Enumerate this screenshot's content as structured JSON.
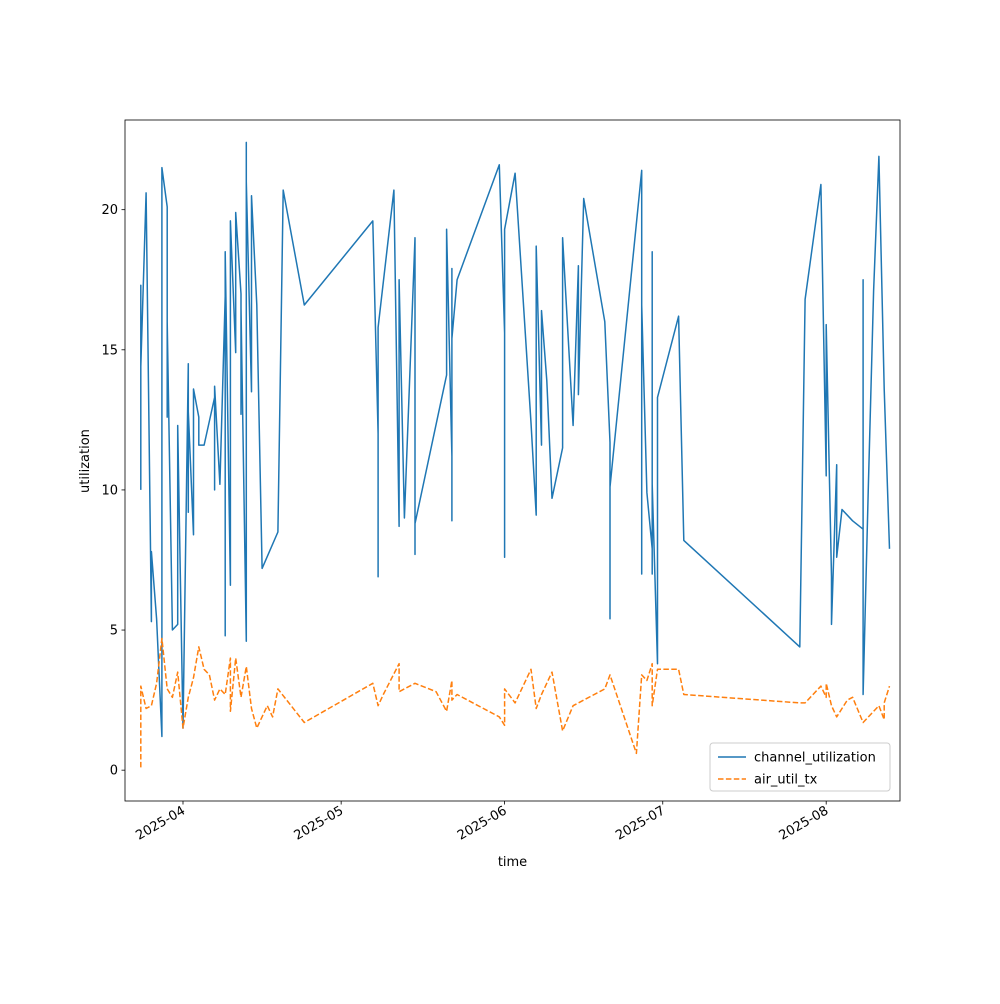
{
  "chart_data": {
    "type": "line",
    "title": "",
    "xlabel": "time",
    "ylabel": "utilization",
    "x_type": "date",
    "xlim": [
      "2025-03-21",
      "2025-08-15"
    ],
    "ylim": [
      -1.1,
      23.2
    ],
    "x_ticks": [
      "2025-04-01",
      "2025-05-01",
      "2025-06-01",
      "2025-07-01",
      "2025-08-01"
    ],
    "x_tick_labels": [
      "2025-04",
      "2025-05",
      "2025-06",
      "2025-07",
      "2025-08"
    ],
    "y_ticks": [
      0,
      5,
      10,
      15,
      20
    ],
    "y_tick_labels": [
      "0",
      "5",
      "10",
      "15",
      "20"
    ],
    "grid": false,
    "legend_position": "lower right",
    "series": [
      {
        "name": "channel_utilization",
        "color": "#1f77b4",
        "dash": "solid",
        "points": [
          [
            "2025-03-24",
            10.0
          ],
          [
            "2025-03-24",
            17.3
          ],
          [
            "2025-03-24",
            14.4
          ],
          [
            "2025-03-25",
            20.6
          ],
          [
            "2025-03-26",
            5.3
          ],
          [
            "2025-03-26",
            7.8
          ],
          [
            "2025-03-27",
            5.4
          ],
          [
            "2025-03-28",
            1.2
          ],
          [
            "2025-03-28",
            21.5
          ],
          [
            "2025-03-29",
            20.1
          ],
          [
            "2025-03-29",
            12.6
          ],
          [
            "2025-03-29",
            16.0
          ],
          [
            "2025-03-30",
            5.0
          ],
          [
            "2025-03-31",
            5.2
          ],
          [
            "2025-03-31",
            12.3
          ],
          [
            "2025-04-01",
            1.5
          ],
          [
            "2025-04-02",
            14.5
          ],
          [
            "2025-04-02",
            9.2
          ],
          [
            "2025-04-02",
            12.8
          ],
          [
            "2025-04-03",
            8.4
          ],
          [
            "2025-04-03",
            13.6
          ],
          [
            "2025-04-04",
            12.6
          ],
          [
            "2025-04-04",
            11.6
          ],
          [
            "2025-04-05",
            11.6
          ],
          [
            "2025-04-07",
            13.3
          ],
          [
            "2025-04-07",
            10.0
          ],
          [
            "2025-04-07",
            13.7
          ],
          [
            "2025-04-08",
            10.2
          ],
          [
            "2025-04-09",
            16.9
          ],
          [
            "2025-04-09",
            4.8
          ],
          [
            "2025-04-09",
            18.5
          ],
          [
            "2025-04-10",
            6.6
          ],
          [
            "2025-04-10",
            18.3
          ],
          [
            "2025-04-10",
            15.5
          ],
          [
            "2025-04-10",
            19.6
          ],
          [
            "2025-04-11",
            14.9
          ],
          [
            "2025-04-11",
            19.9
          ],
          [
            "2025-04-12",
            17.0
          ],
          [
            "2025-04-12",
            12.7
          ],
          [
            "2025-04-12",
            16.5
          ],
          [
            "2025-04-13",
            4.6
          ],
          [
            "2025-04-13",
            22.4
          ],
          [
            "2025-04-13",
            10.0
          ],
          [
            "2025-04-13",
            21.0
          ],
          [
            "2025-04-14",
            13.5
          ],
          [
            "2025-04-14",
            20.5
          ],
          [
            "2025-04-15",
            16.6
          ],
          [
            "2025-04-16",
            7.2
          ],
          [
            "2025-04-19",
            8.5
          ],
          [
            "2025-04-20",
            20.7
          ],
          [
            "2025-04-24",
            16.6
          ],
          [
            "2025-05-07",
            19.6
          ],
          [
            "2025-05-08",
            12.0
          ],
          [
            "2025-05-08",
            6.9
          ],
          [
            "2025-05-08",
            15.8
          ],
          [
            "2025-05-11",
            20.7
          ],
          [
            "2025-05-12",
            8.7
          ],
          [
            "2025-05-12",
            17.5
          ],
          [
            "2025-05-13",
            9.0
          ],
          [
            "2025-05-15",
            19.0
          ],
          [
            "2025-05-15",
            7.7
          ],
          [
            "2025-05-15",
            8.8
          ],
          [
            "2025-05-21",
            14.1
          ],
          [
            "2025-05-21",
            19.3
          ],
          [
            "2025-05-22",
            11.2
          ],
          [
            "2025-05-22",
            17.9
          ],
          [
            "2025-05-22",
            8.9
          ],
          [
            "2025-05-22",
            15.4
          ],
          [
            "2025-05-23",
            17.5
          ],
          [
            "2025-05-31",
            21.6
          ],
          [
            "2025-06-01",
            15.6
          ],
          [
            "2025-06-01",
            7.6
          ],
          [
            "2025-06-01",
            19.3
          ],
          [
            "2025-06-03",
            21.3
          ],
          [
            "2025-06-06",
            12.4
          ],
          [
            "2025-06-07",
            9.1
          ],
          [
            "2025-06-07",
            18.7
          ],
          [
            "2025-06-08",
            11.6
          ],
          [
            "2025-06-08",
            16.4
          ],
          [
            "2025-06-09",
            13.9
          ],
          [
            "2025-06-10",
            9.7
          ],
          [
            "2025-06-12",
            11.5
          ],
          [
            "2025-06-12",
            19.0
          ],
          [
            "2025-06-14",
            12.3
          ],
          [
            "2025-06-15",
            18.0
          ],
          [
            "2025-06-15",
            13.4
          ],
          [
            "2025-06-16",
            20.4
          ],
          [
            "2025-06-20",
            16.0
          ],
          [
            "2025-06-21",
            11.7
          ],
          [
            "2025-06-21",
            5.4
          ],
          [
            "2025-06-21",
            10.1
          ],
          [
            "2025-06-27",
            21.4
          ],
          [
            "2025-06-27",
            7.0
          ],
          [
            "2025-06-27",
            16.6
          ],
          [
            "2025-06-28",
            9.9
          ],
          [
            "2025-06-29",
            7.9
          ],
          [
            "2025-06-29",
            18.5
          ],
          [
            "2025-06-29",
            7.0
          ],
          [
            "2025-06-29",
            10.2
          ],
          [
            "2025-06-30",
            3.8
          ],
          [
            "2025-06-30",
            13.3
          ],
          [
            "2025-07-04",
            16.2
          ],
          [
            "2025-07-05",
            8.2
          ],
          [
            "2025-07-27",
            4.4
          ],
          [
            "2025-07-28",
            16.8
          ],
          [
            "2025-07-31",
            20.9
          ],
          [
            "2025-08-01",
            10.5
          ],
          [
            "2025-08-01",
            15.9
          ],
          [
            "2025-08-02",
            6.9
          ],
          [
            "2025-08-02",
            5.2
          ],
          [
            "2025-08-03",
            10.9
          ],
          [
            "2025-08-03",
            7.6
          ],
          [
            "2025-08-04",
            9.3
          ],
          [
            "2025-08-06",
            8.9
          ],
          [
            "2025-08-08",
            8.6
          ],
          [
            "2025-08-08",
            17.5
          ],
          [
            "2025-08-08",
            2.7
          ],
          [
            "2025-08-09",
            10.2
          ],
          [
            "2025-08-10",
            17.1
          ],
          [
            "2025-08-11",
            21.9
          ],
          [
            "2025-08-12",
            13.6
          ],
          [
            "2025-08-13",
            7.9
          ]
        ]
      },
      {
        "name": "air_util_tx",
        "color": "#ff7f0e",
        "dash": "dashed",
        "points": [
          [
            "2025-03-24",
            0.1
          ],
          [
            "2025-03-24",
            3.0
          ],
          [
            "2025-03-25",
            2.2
          ],
          [
            "2025-03-26",
            2.3
          ],
          [
            "2025-03-27",
            3.1
          ],
          [
            "2025-03-28",
            4.7
          ],
          [
            "2025-03-29",
            2.9
          ],
          [
            "2025-03-30",
            2.6
          ],
          [
            "2025-03-31",
            3.5
          ],
          [
            "2025-04-01",
            1.5
          ],
          [
            "2025-04-02",
            2.6
          ],
          [
            "2025-04-03",
            3.3
          ],
          [
            "2025-04-04",
            4.4
          ],
          [
            "2025-04-05",
            3.6
          ],
          [
            "2025-04-06",
            3.4
          ],
          [
            "2025-04-07",
            2.5
          ],
          [
            "2025-04-08",
            2.9
          ],
          [
            "2025-04-09",
            2.7
          ],
          [
            "2025-04-10",
            4.0
          ],
          [
            "2025-04-10",
            2.1
          ],
          [
            "2025-04-11",
            4.0
          ],
          [
            "2025-04-12",
            2.6
          ],
          [
            "2025-04-13",
            3.7
          ],
          [
            "2025-04-14",
            2.2
          ],
          [
            "2025-04-15",
            1.5
          ],
          [
            "2025-04-17",
            2.3
          ],
          [
            "2025-04-18",
            1.9
          ],
          [
            "2025-04-19",
            2.9
          ],
          [
            "2025-04-24",
            1.7
          ],
          [
            "2025-05-07",
            3.1
          ],
          [
            "2025-05-08",
            2.3
          ],
          [
            "2025-05-09",
            2.7
          ],
          [
            "2025-05-12",
            3.8
          ],
          [
            "2025-05-12",
            2.8
          ],
          [
            "2025-05-15",
            3.1
          ],
          [
            "2025-05-19",
            2.8
          ],
          [
            "2025-05-21",
            2.1
          ],
          [
            "2025-05-22",
            3.2
          ],
          [
            "2025-05-22",
            2.5
          ],
          [
            "2025-05-23",
            2.7
          ],
          [
            "2025-05-31",
            1.9
          ],
          [
            "2025-06-01",
            1.6
          ],
          [
            "2025-06-01",
            2.9
          ],
          [
            "2025-06-03",
            2.4
          ],
          [
            "2025-06-06",
            3.6
          ],
          [
            "2025-06-07",
            2.2
          ],
          [
            "2025-06-08",
            2.7
          ],
          [
            "2025-06-10",
            3.5
          ],
          [
            "2025-06-12",
            1.4
          ],
          [
            "2025-06-14",
            2.3
          ],
          [
            "2025-06-20",
            2.9
          ],
          [
            "2025-06-21",
            3.4
          ],
          [
            "2025-06-26",
            0.6
          ],
          [
            "2025-06-27",
            3.4
          ],
          [
            "2025-06-28",
            3.2
          ],
          [
            "2025-06-29",
            3.8
          ],
          [
            "2025-06-29",
            2.3
          ],
          [
            "2025-06-30",
            3.6
          ],
          [
            "2025-07-04",
            3.6
          ],
          [
            "2025-07-05",
            2.7
          ],
          [
            "2025-07-27",
            2.4
          ],
          [
            "2025-07-28",
            2.4
          ],
          [
            "2025-07-31",
            3.0
          ],
          [
            "2025-08-01",
            2.6
          ],
          [
            "2025-08-01",
            3.1
          ],
          [
            "2025-08-02",
            2.3
          ],
          [
            "2025-08-03",
            1.9
          ],
          [
            "2025-08-05",
            2.5
          ],
          [
            "2025-08-06",
            2.6
          ],
          [
            "2025-08-08",
            1.7
          ],
          [
            "2025-08-11",
            2.3
          ],
          [
            "2025-08-12",
            1.8
          ],
          [
            "2025-08-12",
            2.4
          ],
          [
            "2025-08-13",
            3.0
          ]
        ]
      }
    ]
  }
}
